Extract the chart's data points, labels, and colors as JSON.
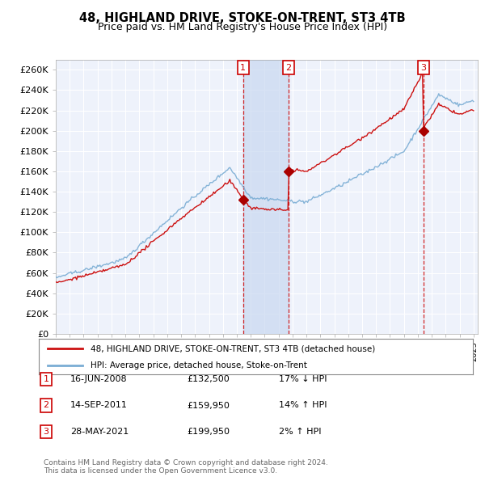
{
  "title": "48, HIGHLAND DRIVE, STOKE-ON-TRENT, ST3 4TB",
  "subtitle": "Price paid vs. HM Land Registry's House Price Index (HPI)",
  "ylim": [
    0,
    270000
  ],
  "yticks": [
    0,
    20000,
    40000,
    60000,
    80000,
    100000,
    120000,
    140000,
    160000,
    180000,
    200000,
    220000,
    240000,
    260000
  ],
  "ytick_labels": [
    "£0",
    "£20K",
    "£40K",
    "£60K",
    "£80K",
    "£100K",
    "£120K",
    "£140K",
    "£160K",
    "£180K",
    "£200K",
    "£220K",
    "£240K",
    "£260K"
  ],
  "background_color": "#ffffff",
  "plot_bg_color": "#eef2fb",
  "grid_color": "#ffffff",
  "hpi_line_color": "#7aadd4",
  "price_line_color": "#cc1111",
  "vline_color": "#cc0000",
  "shade_color": "#c8d8f0",
  "transaction_markers": [
    {
      "price": 132500,
      "label": "1",
      "date_str": "16-JUN-2008",
      "pct": "17%",
      "dir": "↓",
      "year": 2008.45
    },
    {
      "price": 159950,
      "label": "2",
      "date_str": "14-SEP-2011",
      "pct": "14%",
      "dir": "↑",
      "year": 2011.71
    },
    {
      "price": 199950,
      "label": "3",
      "date_str": "28-MAY-2021",
      "pct": "2%",
      "dir": "↑",
      "year": 2021.4
    }
  ],
  "legend_line1": "48, HIGHLAND DRIVE, STOKE-ON-TRENT, ST3 4TB (detached house)",
  "legend_line2": "HPI: Average price, detached house, Stoke-on-Trent",
  "footer": "Contains HM Land Registry data © Crown copyright and database right 2024.\nThis data is licensed under the Open Government Licence v3.0.",
  "xstart_year": 1995,
  "xend_year": 2025
}
